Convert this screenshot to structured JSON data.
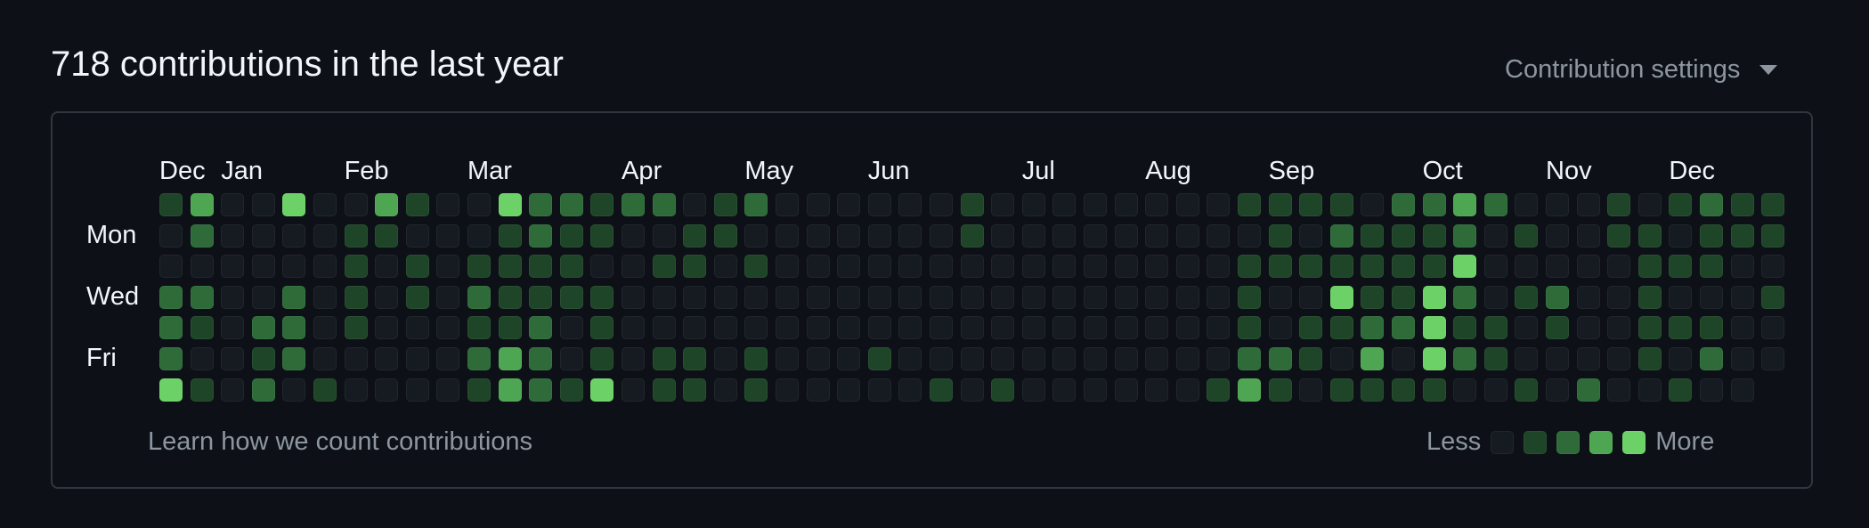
{
  "header": {
    "title": "718 contributions in the last year",
    "settings_label": "Contribution settings",
    "settings_icon": "caret-down-icon"
  },
  "calendar": {
    "months": [
      {
        "label": "Dec",
        "week": 0
      },
      {
        "label": "Jan",
        "week": 2
      },
      {
        "label": "Feb",
        "week": 6
      },
      {
        "label": "Mar",
        "week": 10
      },
      {
        "label": "Apr",
        "week": 15
      },
      {
        "label": "May",
        "week": 19
      },
      {
        "label": "Jun",
        "week": 23
      },
      {
        "label": "Jul",
        "week": 28
      },
      {
        "label": "Aug",
        "week": 32
      },
      {
        "label": "Sep",
        "week": 36
      },
      {
        "label": "Oct",
        "week": 41
      },
      {
        "label": "Nov",
        "week": 45
      },
      {
        "label": "Dec",
        "week": 49
      }
    ],
    "days": [
      {
        "label": "Mon",
        "row": 1
      },
      {
        "label": "Wed",
        "row": 3
      },
      {
        "label": "Fri",
        "row": 5
      }
    ],
    "weeks": [
      [
        1,
        0,
        0,
        2,
        2,
        2,
        4
      ],
      [
        3,
        2,
        0,
        2,
        1,
        0,
        1
      ],
      [
        0,
        0,
        0,
        0,
        0,
        0,
        0
      ],
      [
        0,
        0,
        0,
        0,
        2,
        1,
        2
      ],
      [
        4,
        0,
        0,
        2,
        2,
        2,
        0
      ],
      [
        0,
        0,
        0,
        0,
        0,
        0,
        1
      ],
      [
        0,
        1,
        1,
        1,
        1,
        0,
        0
      ],
      [
        3,
        1,
        0,
        0,
        0,
        0,
        0
      ],
      [
        1,
        0,
        1,
        1,
        0,
        0,
        0
      ],
      [
        0,
        0,
        0,
        0,
        0,
        0,
        0
      ],
      [
        0,
        0,
        1,
        2,
        1,
        2,
        1
      ],
      [
        4,
        1,
        1,
        1,
        1,
        3,
        3
      ],
      [
        2,
        2,
        1,
        1,
        2,
        2,
        2
      ],
      [
        2,
        1,
        1,
        1,
        0,
        0,
        1
      ],
      [
        1,
        1,
        0,
        1,
        1,
        1,
        4
      ],
      [
        2,
        0,
        0,
        0,
        0,
        0,
        0
      ],
      [
        2,
        0,
        1,
        0,
        0,
        1,
        1
      ],
      [
        0,
        1,
        1,
        0,
        0,
        1,
        1
      ],
      [
        1,
        1,
        0,
        0,
        0,
        0,
        0
      ],
      [
        2,
        0,
        1,
        0,
        0,
        1,
        1
      ],
      [
        0,
        0,
        0,
        0,
        0,
        0,
        0
      ],
      [
        0,
        0,
        0,
        0,
        0,
        0,
        0
      ],
      [
        0,
        0,
        0,
        0,
        0,
        0,
        0
      ],
      [
        0,
        0,
        0,
        0,
        0,
        1,
        0
      ],
      [
        0,
        0,
        0,
        0,
        0,
        0,
        0
      ],
      [
        0,
        0,
        0,
        0,
        0,
        0,
        1
      ],
      [
        1,
        1,
        0,
        0,
        0,
        0,
        0
      ],
      [
        0,
        0,
        0,
        0,
        0,
        0,
        1
      ],
      [
        0,
        0,
        0,
        0,
        0,
        0,
        0
      ],
      [
        0,
        0,
        0,
        0,
        0,
        0,
        0
      ],
      [
        0,
        0,
        0,
        0,
        0,
        0,
        0
      ],
      [
        0,
        0,
        0,
        0,
        0,
        0,
        0
      ],
      [
        0,
        0,
        0,
        0,
        0,
        0,
        0
      ],
      [
        0,
        0,
        0,
        0,
        0,
        0,
        0
      ],
      [
        0,
        0,
        0,
        0,
        0,
        0,
        1
      ],
      [
        1,
        0,
        1,
        1,
        1,
        2,
        3
      ],
      [
        1,
        1,
        1,
        0,
        0,
        2,
        1
      ],
      [
        1,
        0,
        1,
        0,
        1,
        1,
        0
      ],
      [
        1,
        2,
        1,
        4,
        1,
        0,
        1
      ],
      [
        0,
        1,
        1,
        1,
        2,
        3,
        1
      ],
      [
        2,
        1,
        1,
        1,
        2,
        0,
        1
      ],
      [
        2,
        1,
        1,
        4,
        4,
        4,
        1
      ],
      [
        3,
        2,
        4,
        2,
        1,
        2,
        0
      ],
      [
        2,
        0,
        0,
        0,
        1,
        1,
        0
      ],
      [
        0,
        1,
        0,
        1,
        0,
        0,
        1
      ],
      [
        0,
        0,
        0,
        2,
        1,
        0,
        0
      ],
      [
        0,
        0,
        0,
        0,
        0,
        0,
        2
      ],
      [
        1,
        1,
        0,
        0,
        0,
        0,
        0
      ],
      [
        0,
        1,
        1,
        1,
        1,
        1,
        0
      ],
      [
        1,
        0,
        1,
        0,
        1,
        0,
        1
      ],
      [
        2,
        1,
        1,
        0,
        1,
        2,
        0
      ],
      [
        1,
        1,
        0,
        0,
        0,
        0,
        0
      ],
      [
        1,
        1,
        0,
        1,
        0,
        0
      ]
    ],
    "level_colors": [
      "#161b22",
      "#1f4529",
      "#2e6b39",
      "#4ea652",
      "#6cd267"
    ]
  },
  "footer": {
    "learn_link": "Learn how we count contributions",
    "less_label": "Less",
    "more_label": "More"
  }
}
